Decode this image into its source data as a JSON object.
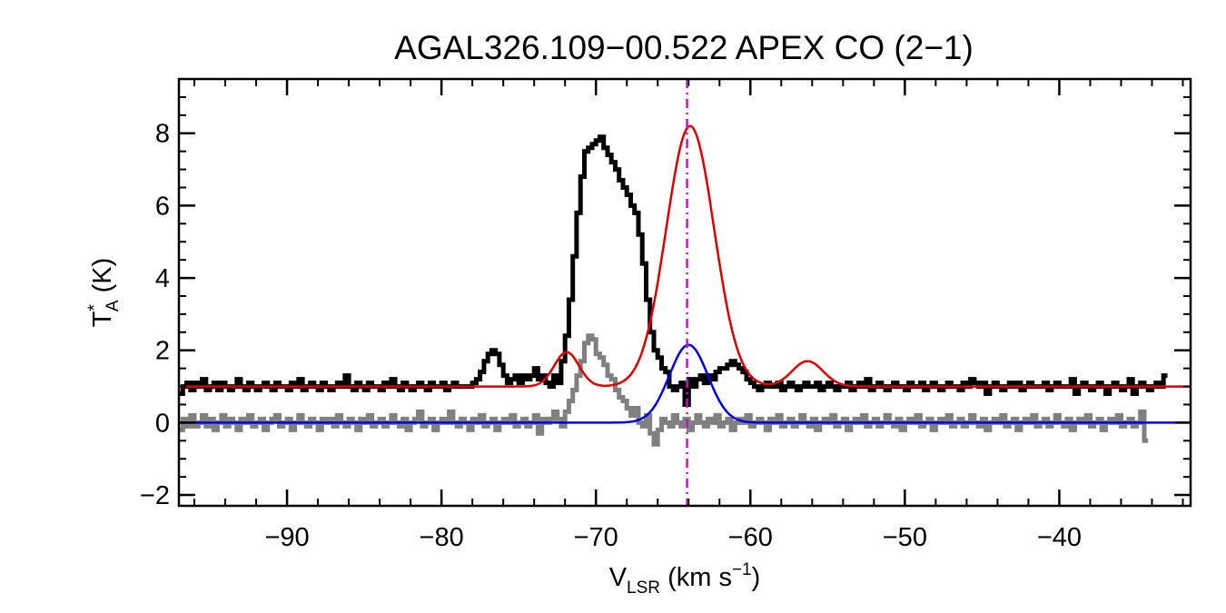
{
  "chart_data": {
    "type": "line",
    "title": "AGAL326.109−00.522  APEX CO (2−1)",
    "xlabel": {
      "main": "V",
      "sub": "LSR",
      "units": " (km s",
      "sup": "−1",
      "close": ")"
    },
    "ylabel": {
      "main": "T",
      "sup": "*",
      "sub": "A",
      "units": " (K)"
    },
    "xlim": [
      -97,
      -31.5
    ],
    "ylim": [
      -2.3,
      9.5
    ],
    "xticks": [
      -90,
      -80,
      -70,
      -60,
      -50,
      -40
    ],
    "xtick_labels": [
      "−90",
      "−80",
      "−70",
      "−60",
      "−50",
      "−40"
    ],
    "yticks": [
      -2,
      0,
      2,
      4,
      6,
      8
    ],
    "ytick_labels": [
      "−2",
      "0",
      "2",
      "4",
      "6",
      "8"
    ],
    "grid": false,
    "legend": "none",
    "vline": {
      "x": -64.1,
      "color": "#e000e0",
      "style": "dash-dot"
    },
    "series": [
      {
        "kind": "step",
        "color": "#000000",
        "x_start": -97.0,
        "x_step": 0.25,
        "values": [
          0.8,
          1.0,
          1.1,
          0.9,
          1.1,
          1.0,
          1.2,
          0.9,
          1.0,
          1.1,
          0.9,
          1.1,
          1.0,
          0.9,
          1.0,
          1.2,
          1.0,
          0.9,
          1.1,
          1.0,
          0.9,
          1.0,
          1.1,
          1.0,
          0.9,
          1.1,
          1.0,
          1.0,
          0.9,
          1.1,
          1.0,
          1.2,
          0.9,
          1.0,
          1.1,
          1.0,
          0.9,
          1.1,
          1.0,
          0.9,
          1.0,
          1.1,
          1.0,
          1.3,
          1.0,
          0.9,
          1.1,
          1.0,
          0.9,
          1.1,
          1.0,
          1.0,
          0.9,
          1.1,
          1.0,
          1.2,
          1.0,
          0.9,
          1.1,
          1.0,
          0.9,
          1.0,
          1.1,
          1.0,
          0.9,
          1.1,
          1.0,
          1.0,
          1.1,
          0.9,
          1.0,
          1.1,
          1.0,
          1.0,
          1.0,
          1.0,
          1.1,
          1.2,
          1.4,
          1.7,
          1.9,
          2.0,
          1.9,
          1.6,
          1.3,
          1.1,
          1.2,
          1.3,
          1.1,
          1.3,
          1.2,
          1.3,
          1.5,
          1.2,
          1.3,
          1.1,
          1.0,
          1.3,
          1.1,
          1.7,
          2.4,
          3.4,
          4.6,
          5.8,
          6.8,
          7.5,
          7.6,
          7.7,
          7.8,
          7.9,
          7.6,
          7.4,
          7.2,
          7.0,
          6.7,
          6.5,
          6.3,
          6.0,
          5.8,
          5.2,
          4.4,
          3.4,
          2.5,
          2.0,
          1.8,
          1.5,
          1.4,
          1.0,
          0.9,
          1.0,
          1.1,
          0.5,
          1.2,
          1.0,
          1.2,
          1.3,
          1.1,
          1.3,
          1.2,
          1.4,
          1.5,
          1.5,
          1.6,
          1.7,
          1.6,
          1.5,
          1.4,
          1.2,
          1.1,
          1.0,
          0.9,
          1.0,
          1.1,
          1.0,
          1.0,
          1.1,
          0.9,
          1.0,
          1.1,
          1.0,
          0.9,
          1.0,
          1.1,
          1.0,
          1.0,
          1.1,
          0.9,
          1.0,
          1.1,
          1.0,
          0.9,
          1.0,
          1.0,
          1.1,
          0.9,
          1.0,
          1.1,
          1.0,
          1.2,
          0.9,
          1.0,
          1.1,
          1.0,
          0.9,
          1.0,
          1.1,
          1.0,
          1.0,
          0.9,
          1.1,
          1.0,
          1.0,
          1.1,
          0.9,
          1.0,
          1.1,
          1.0,
          0.9,
          1.0,
          1.1,
          1.0,
          1.0,
          0.9,
          1.1,
          1.0,
          1.2,
          1.1,
          1.0,
          1.1,
          0.8,
          1.0,
          1.1,
          1.0,
          0.9,
          1.0,
          1.1,
          1.0,
          1.1,
          0.9,
          1.0,
          1.1,
          1.0,
          1.0,
          1.0,
          1.1,
          0.9,
          1.0,
          1.1,
          1.0,
          1.0,
          1.0,
          1.2,
          0.8,
          1.0,
          1.1,
          1.0,
          0.9,
          1.0,
          1.1,
          1.0,
          0.8,
          1.0,
          1.1,
          1.0,
          0.9,
          1.0,
          1.2,
          0.8,
          1.0,
          1.1,
          1.0,
          0.9,
          1.0,
          1.1,
          1.0,
          1.3
        ]
      },
      {
        "kind": "step",
        "color": "#808080",
        "x_start": -97.0,
        "x_step": 0.25,
        "values": [
          -0.2,
          0.1,
          -0.1,
          0.2,
          -0.1,
          0.0,
          0.2,
          -0.1,
          0.1,
          -0.2,
          0.0,
          0.2,
          -0.1,
          0.1,
          0.0,
          -0.2,
          0.1,
          0.0,
          0.2,
          -0.1,
          0.0,
          0.1,
          -0.2,
          0.0,
          0.1,
          0.2,
          -0.1,
          0.0,
          0.1,
          -0.2,
          0.0,
          0.2,
          0.0,
          -0.1,
          0.1,
          0.0,
          -0.2,
          0.1,
          0.0,
          0.1,
          -0.1,
          0.2,
          0.0,
          -0.1,
          0.1,
          0.0,
          -0.2,
          0.1,
          0.0,
          0.2,
          -0.1,
          0.0,
          0.1,
          -0.1,
          0.0,
          0.2,
          0.0,
          -0.1,
          0.1,
          -0.2,
          0.0,
          0.1,
          0.3,
          -0.1,
          0.0,
          0.1,
          -0.2,
          0.0,
          0.1,
          0.0,
          0.3,
          0.0,
          -0.1,
          0.1,
          0.0,
          -0.2,
          0.1,
          0.0,
          0.2,
          -0.1,
          0.0,
          0.1,
          -0.2,
          0.0,
          0.1,
          0.0,
          0.2,
          -0.1,
          0.0,
          0.1,
          -0.1,
          0.0,
          0.2,
          -0.3,
          0.1,
          0.0,
          0.1,
          0.3,
          0.1,
          -0.1,
          0.3,
          0.6,
          0.9,
          1.3,
          1.7,
          2.2,
          2.4,
          2.3,
          1.9,
          1.8,
          1.6,
          1.3,
          1.2,
          0.9,
          0.7,
          0.6,
          0.4,
          0.2,
          0.4,
          0.0,
          -0.1,
          0.2,
          -0.3,
          -0.6,
          -0.2,
          0.1,
          0.0,
          -0.1,
          0.2,
          0.0,
          -0.1,
          0.1,
          -0.2,
          0.0,
          0.2,
          0.0,
          -0.1,
          0.1,
          0.0,
          0.2,
          -0.1,
          0.0,
          0.1,
          -0.2,
          0.0,
          0.1,
          0.0,
          0.2,
          -0.1,
          0.0,
          0.1,
          0.0,
          -0.2,
          0.1,
          0.0,
          0.2,
          -0.1,
          0.0,
          0.1,
          -0.1,
          0.0,
          0.2,
          0.0,
          -0.1,
          0.1,
          -0.2,
          0.0,
          0.1,
          0.0,
          0.2,
          -0.1,
          0.0,
          0.1,
          -0.2,
          0.0,
          0.1,
          0.0,
          0.2,
          -0.1,
          0.0,
          0.1,
          -0.1,
          0.0,
          0.2,
          0.0,
          -0.1,
          0.1,
          -0.2,
          0.0,
          0.1,
          0.0,
          0.2,
          -0.1,
          0.0,
          0.1,
          -0.2,
          0.0,
          0.1,
          0.0,
          0.2,
          -0.1,
          0.0,
          0.1,
          -0.1,
          0.0,
          0.2,
          0.0,
          -0.1,
          0.1,
          -0.2,
          0.0,
          0.1,
          0.0,
          0.2,
          -0.1,
          0.0,
          0.1,
          -0.2,
          0.0,
          0.1,
          0.0,
          0.2,
          -0.1,
          0.0,
          0.1,
          -0.1,
          0.0,
          0.2,
          0.0,
          -0.1,
          0.1,
          -0.2,
          0.0,
          0.1,
          0.0,
          0.2,
          -0.1,
          0.0,
          0.1,
          -0.2,
          0.0,
          0.1,
          0.0,
          0.2,
          -0.1,
          0.0,
          0.1,
          -0.1,
          0.0,
          0.3,
          -0.5
        ]
      },
      {
        "kind": "gaussian",
        "color": "#e00000",
        "baseline": 1.0,
        "components": [
          {
            "amplitude": 0.95,
            "center": -71.9,
            "sigma": 0.8
          },
          {
            "amplitude": 7.2,
            "center": -63.9,
            "sigma": 1.55
          },
          {
            "amplitude": 0.7,
            "center": -56.3,
            "sigma": 1.0
          }
        ]
      },
      {
        "kind": "gaussian",
        "color": "#0000e0",
        "baseline": 0.0,
        "components": [
          {
            "amplitude": 2.15,
            "center": -64.0,
            "sigma": 1.25
          }
        ]
      }
    ]
  }
}
